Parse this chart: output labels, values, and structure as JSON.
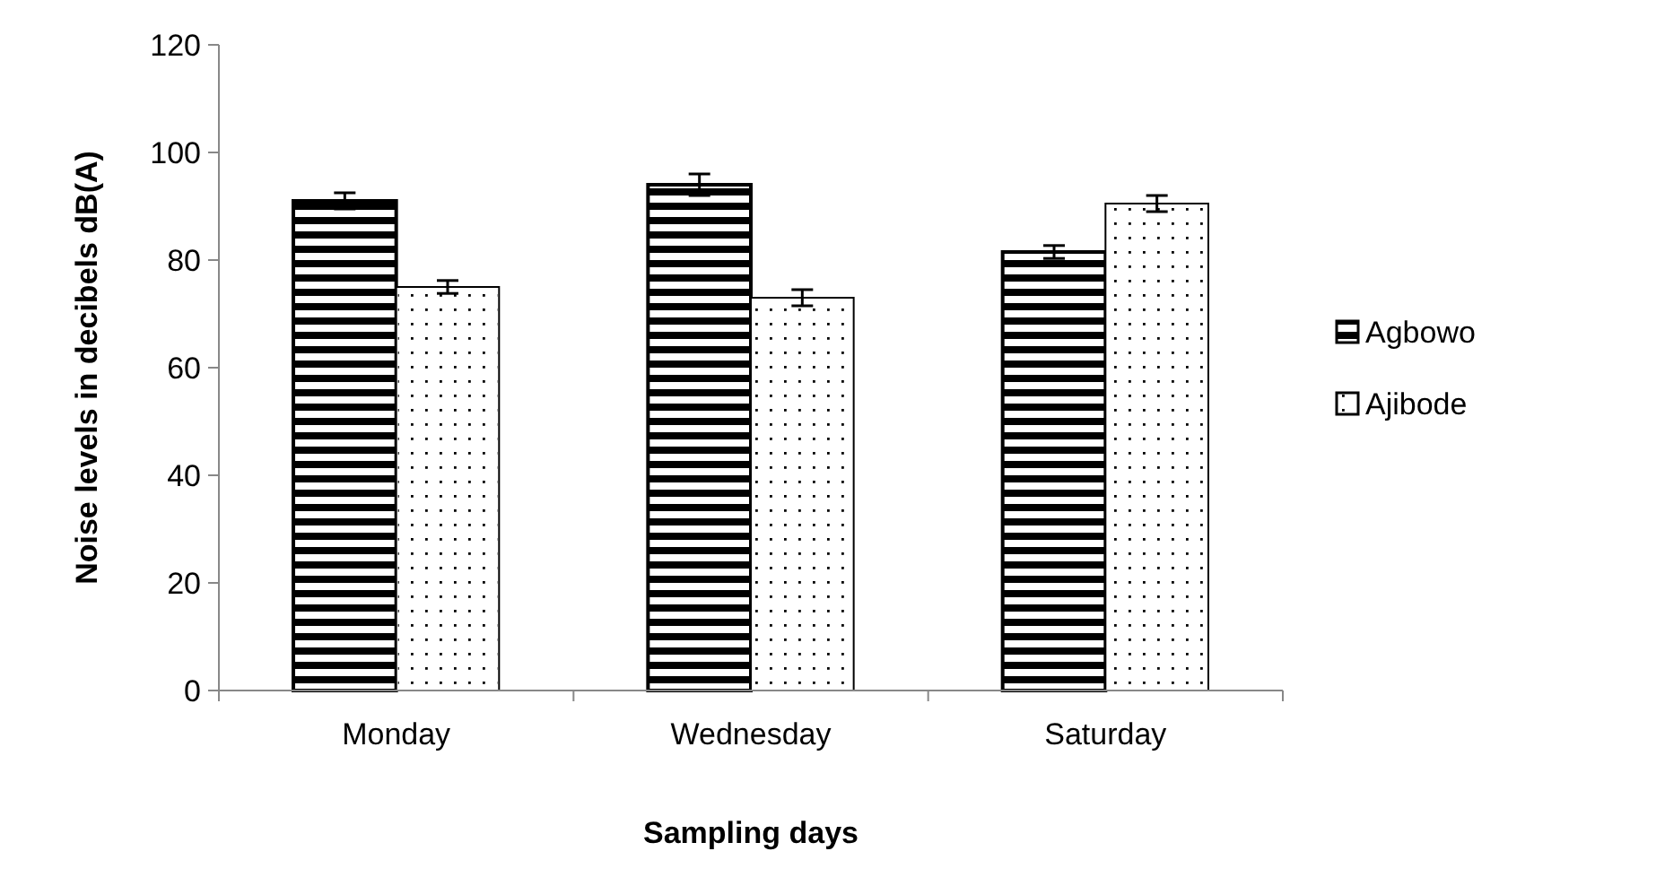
{
  "chart_data": {
    "type": "bar",
    "xlabel": "Sampling days",
    "ylabel": "Noise levels in decibels dB(A)",
    "categories": [
      "Monday",
      "Wednesday",
      "Saturday"
    ],
    "series": [
      {
        "name": "Agbowo",
        "color": "#000000",
        "values": [
          91,
          94,
          81.5
        ],
        "errors": [
          1.5,
          2,
          1.2
        ]
      },
      {
        "name": "Ajibode",
        "color": "#ffffff",
        "values": [
          75,
          73,
          90.5
        ],
        "errors": [
          1.2,
          1.5,
          1.5
        ]
      }
    ],
    "ylim": [
      0,
      120
    ],
    "yticks": [
      0,
      20,
      40,
      60,
      80,
      100,
      120
    ],
    "grid": false,
    "legend": "right"
  }
}
